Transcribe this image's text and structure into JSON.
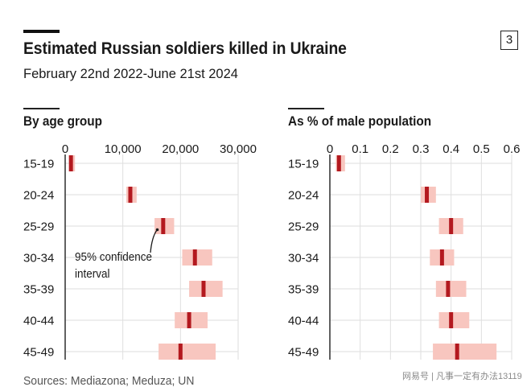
{
  "header": {
    "title": "Estimated Russian soldiers killed in Ukraine",
    "subtitle": "February 22nd 2022-June 21st 2024",
    "chart_number": "3"
  },
  "annotation": {
    "lines": [
      "95% confidence",
      "interval"
    ],
    "target_panel": "By age group",
    "target_category": "25-29"
  },
  "footer": {
    "source": "Sources: Mediazona; Meduza; UN",
    "watermark": "网易号 | 凡事一定有办法13119"
  },
  "colors": {
    "estimate_marker": "#b3191f",
    "confidence_band": "#f8c6bf",
    "gridline": "#dedede",
    "zero_axis": "#3a3a3a",
    "text": "#1a1a1a",
    "source_text": "#555555"
  },
  "chart_data": [
    {
      "type": "scatter",
      "orientation": "horizontal",
      "title": "By age group",
      "xlabel": "",
      "ylabel": "",
      "categories": [
        "15-19",
        "20-24",
        "25-29",
        "30-34",
        "35-39",
        "40-44",
        "45-49"
      ],
      "values": [
        1000,
        11300,
        17000,
        22500,
        24000,
        21500,
        20000
      ],
      "ci_low": [
        700,
        10600,
        15500,
        20300,
        21500,
        19000,
        16200
      ],
      "ci_high": [
        1700,
        12400,
        18900,
        25500,
        27300,
        24700,
        26100
      ],
      "xlim": [
        0,
        30000
      ],
      "xticks": [
        0,
        10000,
        20000,
        30000
      ],
      "xtick_labels": [
        "0",
        "10,000",
        "20,000",
        "30,000"
      ],
      "grid": true,
      "legend": "none"
    },
    {
      "type": "scatter",
      "orientation": "horizontal",
      "title": "As % of male population",
      "xlabel": "",
      "ylabel": "",
      "categories": [
        "15-19",
        "20-24",
        "25-29",
        "30-34",
        "35-39",
        "40-44",
        "45-49"
      ],
      "values": [
        0.03,
        0.32,
        0.4,
        0.37,
        0.39,
        0.4,
        0.42
      ],
      "ci_low": [
        0.02,
        0.3,
        0.36,
        0.33,
        0.35,
        0.36,
        0.34
      ],
      "ci_high": [
        0.05,
        0.35,
        0.44,
        0.41,
        0.45,
        0.46,
        0.55
      ],
      "xlim": [
        0,
        0.6
      ],
      "xticks": [
        0,
        0.1,
        0.2,
        0.3,
        0.4,
        0.5,
        0.6
      ],
      "xtick_labels": [
        "0",
        "0.1",
        "0.2",
        "0.3",
        "0.4",
        "0.5",
        "0.6"
      ],
      "grid": true,
      "legend": "none"
    }
  ]
}
